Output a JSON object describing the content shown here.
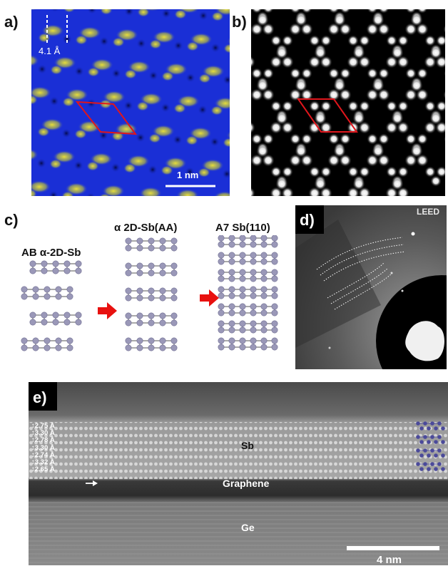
{
  "panels": {
    "a": {
      "letter": "a)",
      "distance_label": "4.1 Å",
      "scalebar_label": "1 nm",
      "colors": {
        "background": "#1a2fd6",
        "feature": "#d8d23a",
        "unit_cell": "#e0161c"
      }
    },
    "b": {
      "letter": "b)",
      "colors": {
        "background": "#000000",
        "atom": "#ffffff",
        "unit_cell": "#e0161c"
      }
    },
    "c": {
      "letter": "c)",
      "structure_labels": [
        "AB α-2D-Sb",
        "α 2D-Sb(AA)",
        "A7 Sb(110)"
      ],
      "colors": {
        "atom": "#9a98b8",
        "arrow": "#e8110f"
      }
    },
    "d": {
      "letter": "d)",
      "title": "LEED"
    },
    "e": {
      "letter": "e)",
      "spacings": [
        "2.75 Å",
        "3.30 Å",
        "2.78 Å",
        "3.30 Å",
        "2.74 Å",
        "3.32 Å",
        "2.65 Å"
      ],
      "layer_labels": {
        "sb": "Sb",
        "graphene": "Graphene",
        "ge": "Ge"
      },
      "scalebar_label": "4 nm"
    }
  }
}
